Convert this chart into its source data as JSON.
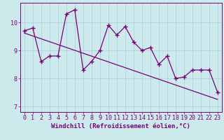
{
  "xlabel": "Windchill (Refroidissement éolien,°C)",
  "xlim": [
    -0.5,
    23.5
  ],
  "ylim": [
    6.8,
    10.7
  ],
  "yticks": [
    7,
    8,
    9,
    10
  ],
  "xticks": [
    0,
    1,
    2,
    3,
    4,
    5,
    6,
    7,
    8,
    9,
    10,
    11,
    12,
    13,
    14,
    15,
    16,
    17,
    18,
    19,
    20,
    21,
    22,
    23
  ],
  "main_line": {
    "x": [
      0,
      1,
      2,
      3,
      4,
      5,
      6,
      7,
      8,
      9,
      10,
      11,
      12,
      13,
      14,
      15,
      16,
      17,
      18,
      19,
      20,
      21,
      22,
      23
    ],
    "y": [
      9.7,
      9.8,
      8.6,
      8.8,
      8.8,
      10.3,
      10.45,
      8.3,
      8.6,
      9.0,
      9.9,
      9.55,
      9.85,
      9.3,
      9.0,
      9.1,
      8.5,
      8.8,
      8.0,
      8.05,
      8.3,
      8.3,
      8.3,
      7.5
    ],
    "color": "#7a0077",
    "linewidth": 0.9,
    "marker": "+",
    "markersize": 4,
    "markeredgewidth": 1.0
  },
  "trend_line": {
    "x": [
      0,
      23
    ],
    "y": [
      9.62,
      7.25
    ],
    "color": "#7a0077",
    "linewidth": 0.9,
    "linestyle": "-"
  },
  "bg_color": "#cce9ec",
  "grid_color": "#a8cfd4",
  "spine_color": "#7a0077",
  "tick_color": "#7a0077",
  "label_color": "#7a0077",
  "font_size_label": 6.5,
  "font_size_tick": 6.0
}
